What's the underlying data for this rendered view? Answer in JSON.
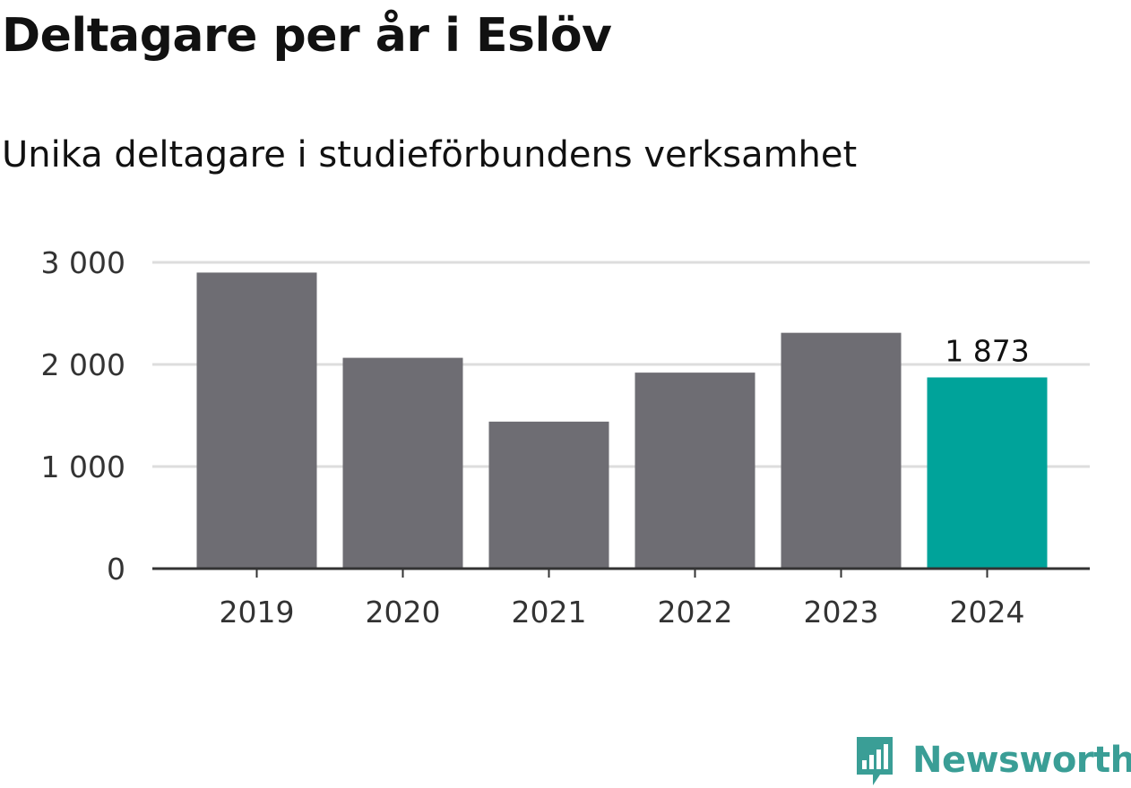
{
  "header": {
    "title": "Deltagare per år i Eslöv",
    "subtitle": "Unika deltagare i studieförbundens verksamhet"
  },
  "chart_data": {
    "type": "bar",
    "title": "Deltagare per år i Eslöv",
    "subtitle": "Unika deltagare i studieförbundens verksamhet",
    "categories": [
      "2019",
      "2020",
      "2021",
      "2022",
      "2023",
      "2024"
    ],
    "values": [
      2900,
      2065,
      1440,
      1920,
      2310,
      1873
    ],
    "ylim": [
      0,
      3000
    ],
    "yticks": [
      0,
      1000,
      2000,
      3000
    ],
    "ytick_labels": [
      "0",
      "1 000",
      "2 000",
      "3 000"
    ],
    "xlabel": "",
    "ylabel": "",
    "grid": true,
    "highlight_index": 5,
    "highlight_label": "1 873",
    "colors": {
      "bar": "#6e6d73",
      "highlight": "#00a39a",
      "grid": "#dddddd",
      "axis": "#333333"
    }
  },
  "branding": {
    "name": "Newsworthy",
    "logo_icon": "bar-chart-speech-bubble-icon",
    "color": "#3a9e96"
  }
}
